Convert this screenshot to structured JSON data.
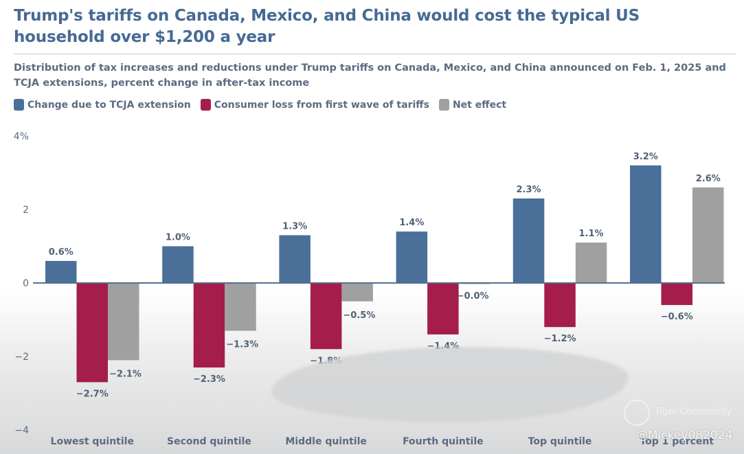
{
  "header": {
    "title": "Trump's tariffs on Canada, Mexico, and China would cost the typical US household over $1,200 a year",
    "subtitle": "Distribution of tax increases and reductions under Trump tariffs on Canada, Mexico, and China announced on Feb. 1, 2025 and TCJA extensions, percent change in after-tax income"
  },
  "legend": [
    {
      "label": "Change due to TCJA extension",
      "color": "#4a6f99"
    },
    {
      "label": "Consumer loss from first wave of tariffs",
      "color": "#a51d4b"
    },
    {
      "label": "Net effect",
      "color": "#a0a0a0"
    }
  ],
  "watermark": {
    "brand": "Tiger Community",
    "user": "@Mickey082024",
    "icon": "tiger-community-logo-icon"
  },
  "chart_data": {
    "type": "bar",
    "title": "Trump's tariffs on Canada, Mexico, and China would cost the typical US household over $1,200 a year",
    "subtitle": "Distribution of tax increases and reductions under Trump tariffs on Canada, Mexico, and China announced on Feb. 1, 2025 and TCJA extensions, percent change in after-tax income",
    "xlabel": "",
    "ylabel": "",
    "categories": [
      "Lowest quintile",
      "Second quintile",
      "Middle quintile",
      "Fourth quintile",
      "Top quintile",
      "Top 1 percent"
    ],
    "series": [
      {
        "name": "Change due to TCJA extension",
        "color": "#4a6f99",
        "values": [
          0.6,
          1.0,
          1.3,
          1.4,
          2.3,
          3.2
        ],
        "labels": [
          "0.6%",
          "1.0%",
          "1.3%",
          "1.4%",
          "2.3%",
          "3.2%"
        ]
      },
      {
        "name": "Consumer loss from first wave of tariffs",
        "color": "#a51d4b",
        "values": [
          -2.7,
          -2.3,
          -1.8,
          -1.4,
          -1.2,
          -0.6
        ],
        "labels": [
          "−2.7%",
          "−2.3%",
          "−1.8%",
          "−1.4%",
          "−1.2%",
          "−0.6%"
        ]
      },
      {
        "name": "Net effect",
        "color": "#a0a0a0",
        "values": [
          -2.1,
          -1.3,
          -0.5,
          -0.0,
          1.1,
          2.6
        ],
        "labels": [
          "−2.1%",
          "−1.3%",
          "−0.5%",
          "−0.0%",
          "1.1%",
          "2.6%"
        ]
      }
    ],
    "yticks": [
      4,
      2,
      0,
      -2,
      -4
    ],
    "ytick_labels": [
      "4%",
      "2",
      "0",
      "−2",
      "−4"
    ],
    "ylim": [
      -4,
      4
    ],
    "grid": false,
    "legend_position": "top-left"
  }
}
